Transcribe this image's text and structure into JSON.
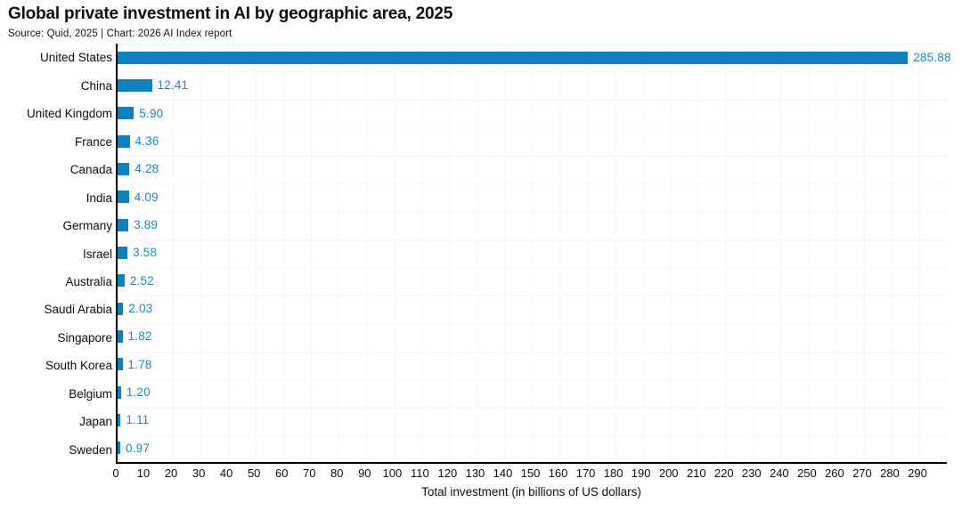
{
  "header": {
    "title": "Global private investment in AI by geographic area, 2025",
    "source_line": "Source: Quid, 2025 | Chart: 2026 AI Index report"
  },
  "chart_data": {
    "type": "bar",
    "orientation": "horizontal",
    "title": "Global private investment in AI by geographic area, 2025",
    "subtitle": "Source: Quid, 2025 | Chart: 2026 AI Index report",
    "categories": [
      "United States",
      "China",
      "United Kingdom",
      "France",
      "Canada",
      "India",
      "Germany",
      "Israel",
      "Australia",
      "Saudi Arabia",
      "Singapore",
      "South Korea",
      "Belgium",
      "Japan",
      "Sweden"
    ],
    "values": [
      285.88,
      12.41,
      5.9,
      4.36,
      4.28,
      4.09,
      3.89,
      3.58,
      2.52,
      2.03,
      1.82,
      1.78,
      1.2,
      1.11,
      0.97
    ],
    "value_label_decimals": 2,
    "xlabel": "Total investment (in billions of US dollars)",
    "xlim": [
      0,
      290
    ],
    "xticks": [
      0,
      10,
      20,
      30,
      40,
      50,
      60,
      70,
      80,
      90,
      100,
      110,
      120,
      130,
      140,
      150,
      160,
      170,
      180,
      190,
      200,
      210,
      220,
      230,
      240,
      250,
      260,
      270,
      280,
      290
    ],
    "grid": true,
    "legend": false,
    "bar_color": "#1180c2",
    "value_label_color": "#1e87c5",
    "axis_color": "#000000",
    "grid_color": "#f4f4f4"
  }
}
